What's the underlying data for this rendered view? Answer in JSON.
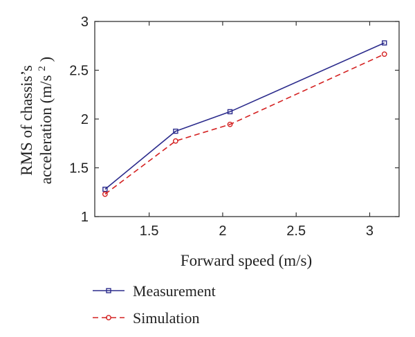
{
  "chart_data": {
    "type": "line",
    "xlabel": "Forward speed (m/s)",
    "ylabel_line1": "RMS of chassis’s",
    "ylabel_line2_main": "acceleration (m/s",
    "ylabel_line2_sup": "2",
    "ylabel_line2_end": ")",
    "xlim": [
      1.13,
      3.2
    ],
    "ylim": [
      1,
      3
    ],
    "xticks": [
      1.5,
      2,
      2.5,
      3
    ],
    "xtick_labels": [
      "1.5",
      "2",
      "2.5",
      "3"
    ],
    "yticks": [
      1,
      1.5,
      2,
      2.5,
      3
    ],
    "ytick_labels": [
      "1",
      "1.5",
      "2",
      "2.5",
      "3"
    ],
    "grid": false,
    "legend_position": "below",
    "series": [
      {
        "name": "Measurement",
        "color": "#2b2b8c",
        "line_style": "solid",
        "marker": "square",
        "x": [
          1.2,
          1.68,
          2.05,
          3.1
        ],
        "y": [
          1.28,
          1.875,
          2.075,
          2.78
        ]
      },
      {
        "name": "Simulation",
        "color": "#d42020",
        "line_style": "dashed",
        "marker": "circle",
        "x": [
          1.2,
          1.68,
          2.05,
          3.1
        ],
        "y": [
          1.23,
          1.775,
          1.945,
          2.665
        ]
      }
    ]
  }
}
